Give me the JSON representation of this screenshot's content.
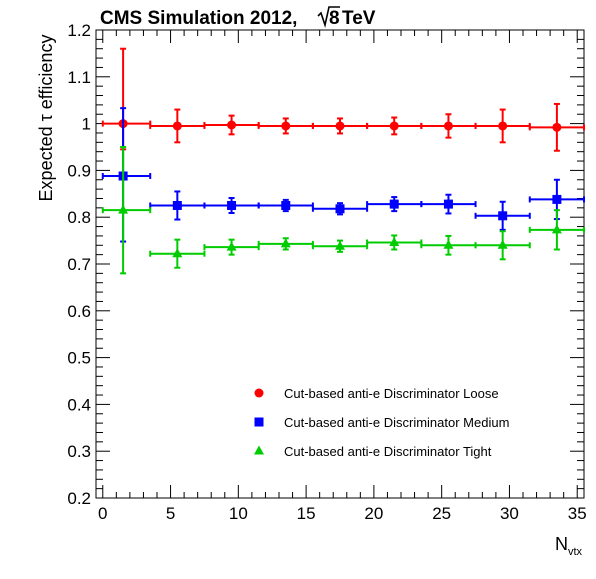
{
  "chart_data": {
    "type": "scatter",
    "title": "CMS Simulation 2012, √8 TeV",
    "title_parts": {
      "prefix": "CMS Simulation 2012, ",
      "radical": "8",
      "suffix": " TeV"
    },
    "ylabel": "Expected τ efficiency",
    "ylabel_parts": {
      "prefix": "Expected ",
      "tau": "τ",
      "suffix": " efficiency"
    },
    "xlabel": "N_vtx",
    "xlabel_parts": {
      "main": "N",
      "sub": "vtx"
    },
    "xlim": [
      -0.5,
      35.5
    ],
    "ylim": [
      0.2,
      1.2
    ],
    "xticks": [
      0,
      5,
      10,
      15,
      20,
      25,
      30,
      35
    ],
    "xtick_labels": [
      "0",
      "5",
      "10",
      "15",
      "20",
      "25",
      "30",
      "35"
    ],
    "yticks": [
      0.2,
      0.3,
      0.4,
      0.5,
      0.6,
      0.7,
      0.8,
      0.9,
      1.0,
      1.1,
      1.2
    ],
    "ytick_labels": [
      "0.2",
      "0.3",
      "0.4",
      "0.5",
      "0.6",
      "0.7",
      "0.8",
      "0.9",
      "1",
      "1.1",
      "1.2"
    ],
    "grid": false,
    "legend_position": "bottom-right",
    "series": [
      {
        "name": "Cut-based anti-e Discriminator Loose",
        "marker": "circle",
        "color": "#ff0000",
        "points": [
          {
            "x": 1.5,
            "y": 1.0,
            "xerr": [
              1.5,
              2.0
            ],
            "yerr": [
              0.055,
              0.16
            ]
          },
          {
            "x": 5.5,
            "y": 0.995,
            "xerr": [
              2.0,
              2.0
            ],
            "yerr": [
              0.035,
              0.035
            ]
          },
          {
            "x": 9.5,
            "y": 0.997,
            "xerr": [
              2.0,
              2.0
            ],
            "yerr": [
              0.02,
              0.02
            ]
          },
          {
            "x": 13.5,
            "y": 0.995,
            "xerr": [
              2.0,
              2.0
            ],
            "yerr": [
              0.016,
              0.016
            ]
          },
          {
            "x": 17.5,
            "y": 0.995,
            "xerr": [
              2.0,
              2.0
            ],
            "yerr": [
              0.016,
              0.016
            ]
          },
          {
            "x": 21.5,
            "y": 0.995,
            "xerr": [
              2.0,
              2.0
            ],
            "yerr": [
              0.018,
              0.018
            ]
          },
          {
            "x": 25.5,
            "y": 0.995,
            "xerr": [
              2.0,
              2.0
            ],
            "yerr": [
              0.025,
              0.025
            ]
          },
          {
            "x": 29.5,
            "y": 0.995,
            "xerr": [
              2.0,
              2.0
            ],
            "yerr": [
              0.035,
              0.035
            ]
          },
          {
            "x": 33.5,
            "y": 0.992,
            "xerr": [
              2.0,
              2.0
            ],
            "yerr": [
              0.05,
              0.05
            ]
          }
        ]
      },
      {
        "name": "Cut-based anti-e Discriminator Medium",
        "marker": "square",
        "color": "#0000ff",
        "points": [
          {
            "x": 1.5,
            "y": 0.888,
            "xerr": [
              1.5,
              2.0
            ],
            "yerr": [
              0.14,
              0.145
            ]
          },
          {
            "x": 5.5,
            "y": 0.825,
            "xerr": [
              2.0,
              2.0
            ],
            "yerr": [
              0.03,
              0.03
            ]
          },
          {
            "x": 9.5,
            "y": 0.825,
            "xerr": [
              2.0,
              2.0
            ],
            "yerr": [
              0.016,
              0.016
            ]
          },
          {
            "x": 13.5,
            "y": 0.825,
            "xerr": [
              2.0,
              2.0
            ],
            "yerr": [
              0.012,
              0.012
            ]
          },
          {
            "x": 17.5,
            "y": 0.818,
            "xerr": [
              2.0,
              2.0
            ],
            "yerr": [
              0.012,
              0.012
            ]
          },
          {
            "x": 21.5,
            "y": 0.828,
            "xerr": [
              2.0,
              2.0
            ],
            "yerr": [
              0.015,
              0.015
            ]
          },
          {
            "x": 25.5,
            "y": 0.828,
            "xerr": [
              2.0,
              2.0
            ],
            "yerr": [
              0.02,
              0.02
            ]
          },
          {
            "x": 29.5,
            "y": 0.803,
            "xerr": [
              2.0,
              2.0
            ],
            "yerr": [
              0.03,
              0.03
            ]
          },
          {
            "x": 33.5,
            "y": 0.838,
            "xerr": [
              2.0,
              2.0
            ],
            "yerr": [
              0.042,
              0.042
            ]
          }
        ]
      },
      {
        "name": "Cut-based anti-e Discriminator Tight",
        "marker": "triangle",
        "color": "#00cc00",
        "points": [
          {
            "x": 1.5,
            "y": 0.815,
            "xerr": [
              1.5,
              2.0
            ],
            "yerr": [
              0.135,
              0.135
            ]
          },
          {
            "x": 5.5,
            "y": 0.722,
            "xerr": [
              2.0,
              2.0
            ],
            "yerr": [
              0.03,
              0.03
            ]
          },
          {
            "x": 9.5,
            "y": 0.736,
            "xerr": [
              2.0,
              2.0
            ],
            "yerr": [
              0.016,
              0.016
            ]
          },
          {
            "x": 13.5,
            "y": 0.743,
            "xerr": [
              2.0,
              2.0
            ],
            "yerr": [
              0.012,
              0.012
            ]
          },
          {
            "x": 17.5,
            "y": 0.738,
            "xerr": [
              2.0,
              2.0
            ],
            "yerr": [
              0.012,
              0.012
            ]
          },
          {
            "x": 21.5,
            "y": 0.746,
            "xerr": [
              2.0,
              2.0
            ],
            "yerr": [
              0.015,
              0.015
            ]
          },
          {
            "x": 25.5,
            "y": 0.74,
            "xerr": [
              2.0,
              2.0
            ],
            "yerr": [
              0.02,
              0.02
            ]
          },
          {
            "x": 29.5,
            "y": 0.74,
            "xerr": [
              2.0,
              2.0
            ],
            "yerr": [
              0.03,
              0.03
            ]
          },
          {
            "x": 33.5,
            "y": 0.773,
            "xerr": [
              2.0,
              2.0
            ],
            "yerr": [
              0.042,
              0.042
            ]
          }
        ]
      }
    ]
  }
}
